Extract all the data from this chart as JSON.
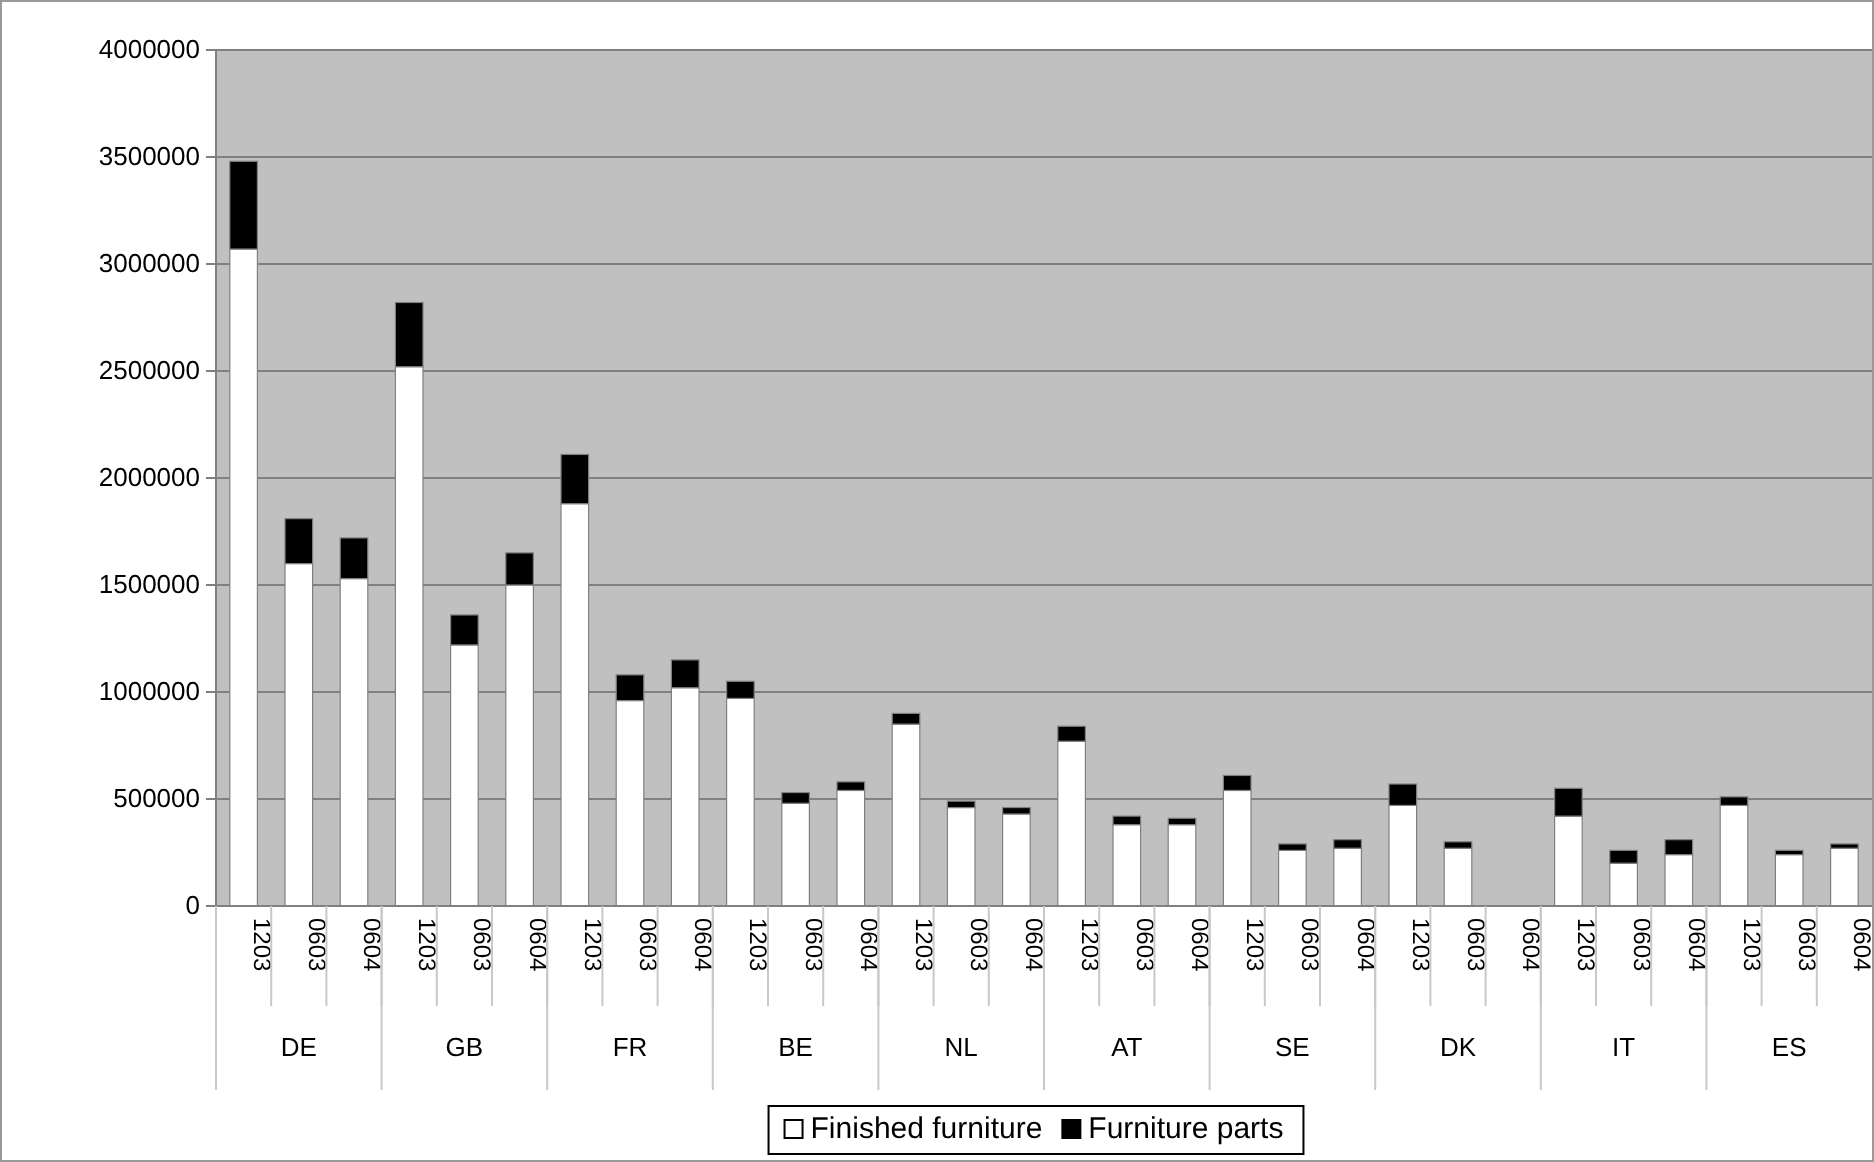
{
  "chart_data": {
    "type": "bar",
    "stacked": true,
    "categories": [
      "1203",
      "0603",
      "0604",
      "1203",
      "0603",
      "0604",
      "1203",
      "0603",
      "0604",
      "1203",
      "0603",
      "0604",
      "1203",
      "0603",
      "0604",
      "1203",
      "0603",
      "0604",
      "1203",
      "0603",
      "0604",
      "1203",
      "0603",
      "0604",
      "1203",
      "0603",
      "0604",
      "1203",
      "0603",
      "0604"
    ],
    "annotations": [
      "DE",
      "GB",
      "FR",
      "BE",
      "NL",
      "AT",
      "SE",
      "DK",
      "IT",
      "ES"
    ],
    "series": [
      {
        "name": "Finished furniture",
        "color": "#ffffff",
        "values": [
          3070000,
          1600000,
          1530000,
          2520000,
          1220000,
          1500000,
          1880000,
          960000,
          1020000,
          970000,
          480000,
          540000,
          850000,
          460000,
          430000,
          770000,
          380000,
          380000,
          540000,
          260000,
          270000,
          470000,
          270000,
          0,
          420000,
          200000,
          240000,
          470000,
          240000,
          270000
        ]
      },
      {
        "name": "Furniture parts",
        "color": "#000000",
        "values": [
          410000,
          210000,
          190000,
          300000,
          140000,
          150000,
          230000,
          120000,
          130000,
          80000,
          50000,
          40000,
          50000,
          30000,
          30000,
          70000,
          40000,
          30000,
          70000,
          30000,
          40000,
          100000,
          30000,
          0,
          130000,
          60000,
          70000,
          40000,
          20000,
          20000
        ]
      }
    ],
    "ylim": [
      0,
      4000000
    ],
    "yticks": [
      0,
      500000,
      1000000,
      1500000,
      2000000,
      2500000,
      3000000,
      3500000,
      4000000
    ],
    "grid": "y",
    "legend": "bottom"
  }
}
